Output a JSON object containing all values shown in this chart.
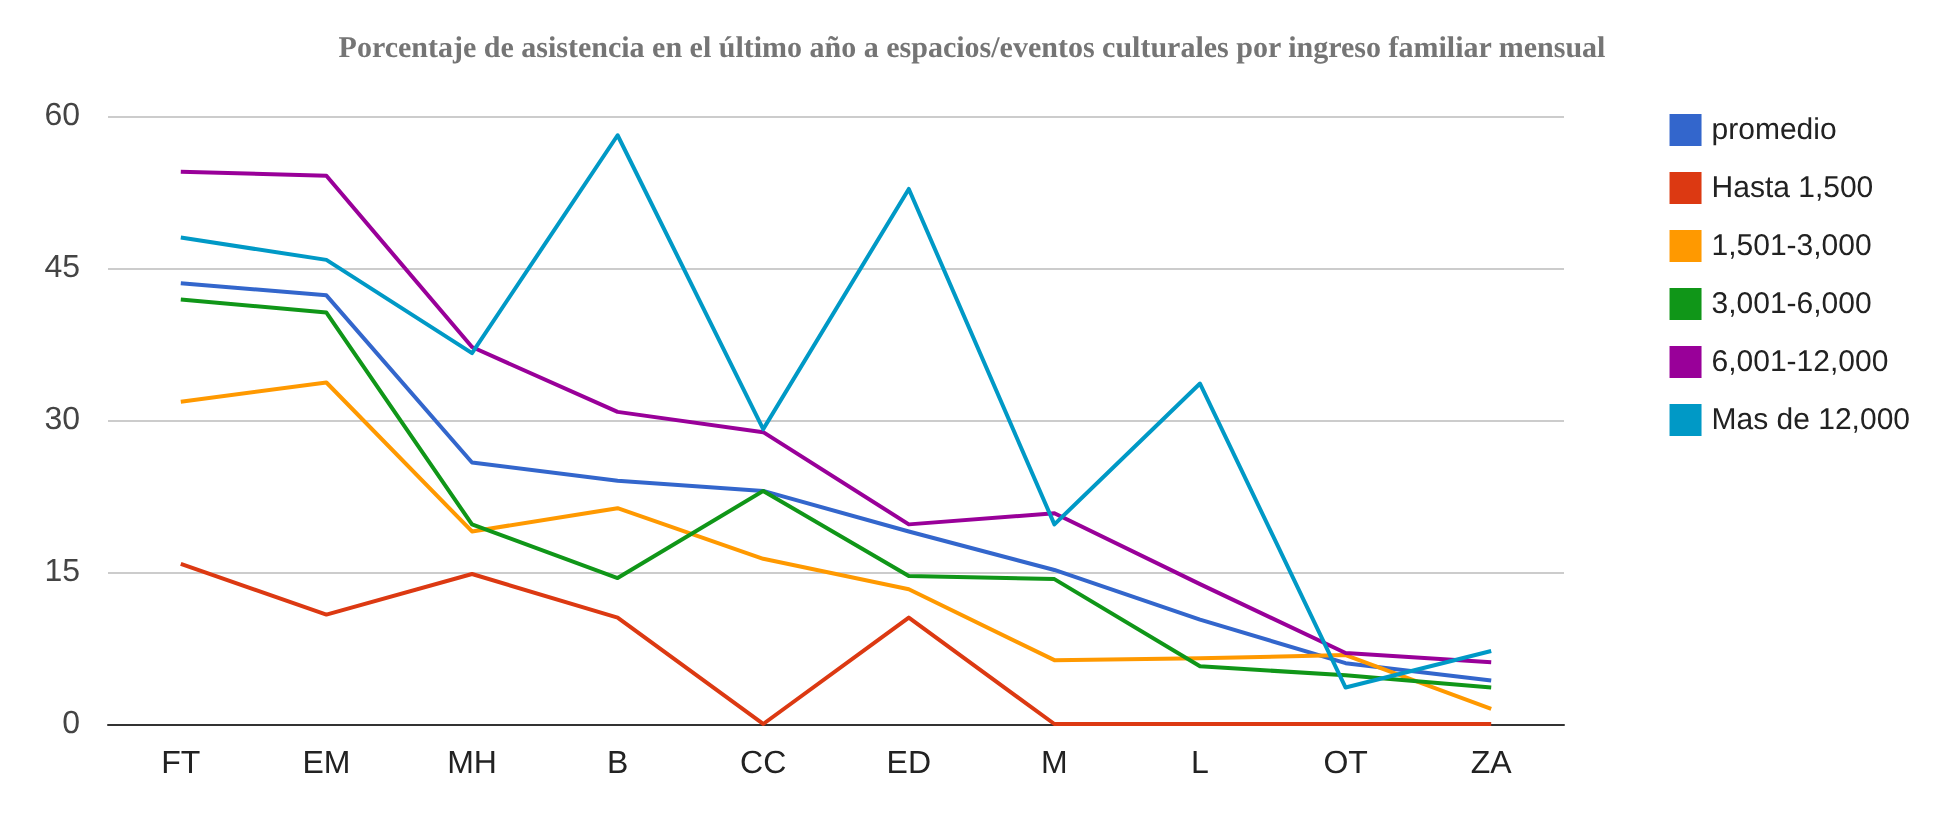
{
  "chart_data": {
    "type": "line",
    "title": "Porcentaje de asistencia en el último año a espacios/eventos culturales por ingreso familiar mensual",
    "categories": [
      "FT",
      "EM",
      "MH",
      "B",
      "CC",
      "ED",
      "M",
      "L",
      "OT",
      "ZA"
    ],
    "series": [
      {
        "name": "promedio",
        "color": "#3366cc",
        "values": [
          43.5,
          42.3,
          25.8,
          24,
          23,
          19,
          15.2,
          10.3,
          6,
          4.3
        ]
      },
      {
        "name": "Hasta 1,500",
        "color": "#dc3912",
        "values": [
          15.8,
          10.8,
          14.8,
          10.5,
          0,
          10.5,
          0,
          0,
          0,
          0
        ]
      },
      {
        "name": "1,501-3,000",
        "color": "#ff9900",
        "values": [
          31.8,
          33.7,
          19,
          21.3,
          16.3,
          13.3,
          6.3,
          6.5,
          6.8,
          1.5
        ]
      },
      {
        "name": "3,001-6,000",
        "color": "#109618",
        "values": [
          41.9,
          40.6,
          19.7,
          14.4,
          23,
          14.6,
          14.3,
          5.7,
          4.8,
          3.6
        ]
      },
      {
        "name": "6,001-12,000",
        "color": "#990099",
        "values": [
          54.5,
          54.1,
          37.2,
          30.8,
          28.8,
          19.7,
          20.8,
          13.8,
          7,
          6.1
        ]
      },
      {
        "name": "Mas de 12,000",
        "color": "#0099c6",
        "values": [
          48,
          45.8,
          36.6,
          58.1,
          29.1,
          52.8,
          19.7,
          33.6,
          3.6,
          7.2
        ]
      }
    ],
    "ylim": [
      0,
      60
    ],
    "yticks": [
      0,
      15,
      30,
      45,
      60
    ],
    "grid": "y",
    "legend": "right",
    "marker": "none",
    "line_style": "solid"
  }
}
